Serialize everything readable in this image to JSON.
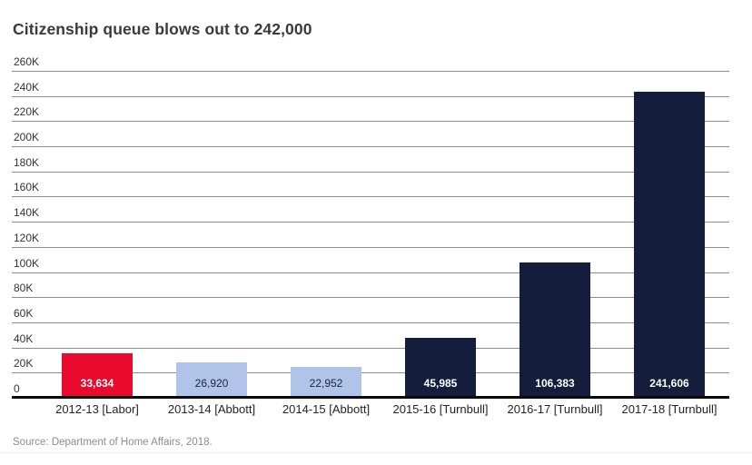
{
  "title": "Citizenship queue blows out to 242,000",
  "source": "Source: Department of Home Affairs, 2018.",
  "colors": {
    "red": "#e8092c",
    "light_blue": "#b0c4e9",
    "navy": "#141e3c",
    "grid": "#8c8c8c",
    "axis": "#0b0b0b",
    "title_text": "#3a3a3a",
    "tick_text": "#333333",
    "category_text": "#242424",
    "source_text": "#8c8c90"
  },
  "chart_data": {
    "type": "bar",
    "title": "Citizenship queue blows out to 242,000",
    "xlabel": "",
    "ylabel": "",
    "categories": [
      "2012-13 [Labor]",
      "2013-14 [Abbott]",
      "2014-15 [Abbott]",
      "2015-16 [Turnbull]",
      "2016-17 [Turnbull]",
      "2017-18 [Turnbull]"
    ],
    "values": [
      33634,
      26920,
      22952,
      45985,
      106383,
      241606
    ],
    "value_labels": [
      "33,634",
      "26,920",
      "22,952",
      "45,985",
      "106,383",
      "241,606"
    ],
    "bar_colors": [
      "red",
      "light_blue",
      "light_blue",
      "navy",
      "navy",
      "navy"
    ],
    "value_label_colors": [
      "#ffffff",
      "#1c2436",
      "#1c2436",
      "#ffffff",
      "#ffffff",
      "#ffffff"
    ],
    "value_label_bold": [
      true,
      false,
      false,
      true,
      true,
      true
    ],
    "ylim": [
      0,
      260000
    ],
    "ytick_step": 20000,
    "ytick_labels": [
      "0",
      "20K",
      "40K",
      "60K",
      "80K",
      "100K",
      "120K",
      "140K",
      "160K",
      "180K",
      "200K",
      "220K",
      "240K",
      "260K"
    ],
    "grid": true,
    "legend": false,
    "annotation": "Value labels shown inside base of each bar"
  }
}
